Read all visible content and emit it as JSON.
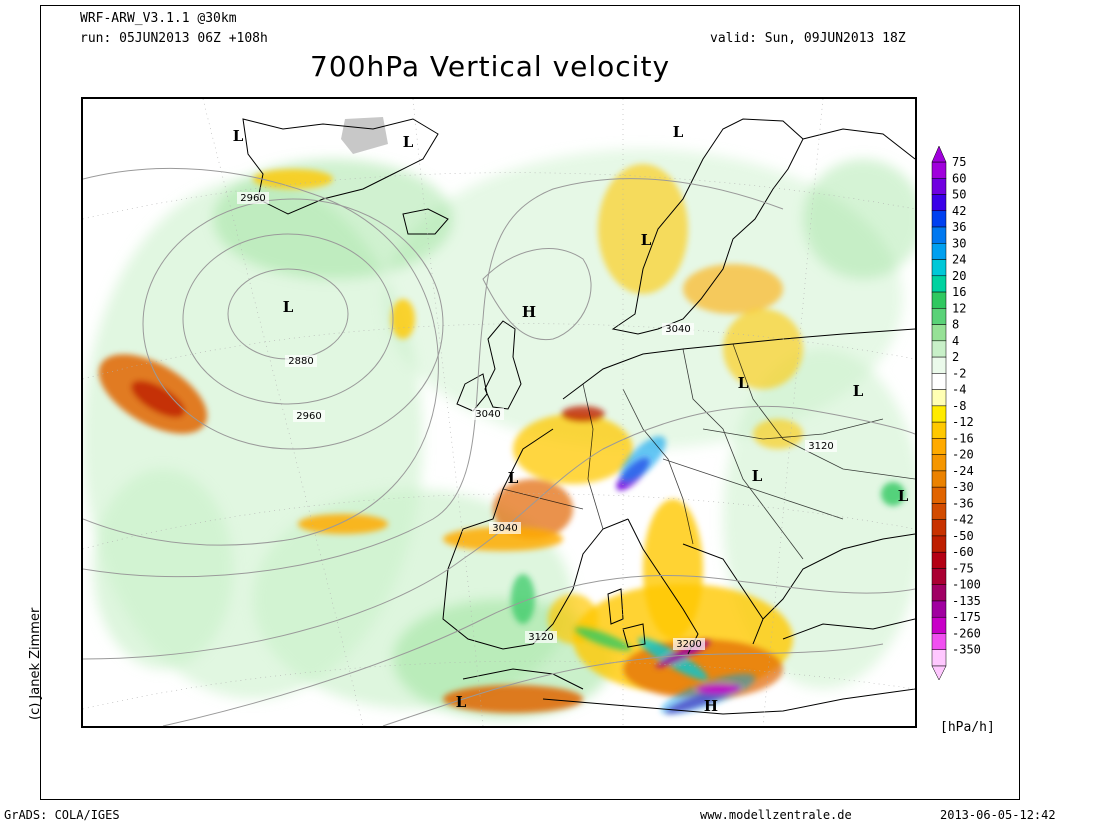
{
  "header": {
    "model": "WRF-ARW_V3.1.1 @30km",
    "run": "run: 05JUN2013 06Z +108h",
    "valid": "valid: Sun, 09JUN2013 18Z",
    "title": "700hPa Vertical velocity"
  },
  "credit": "(c) Janek Zimmer",
  "legend": {
    "unit": "[hPa/h]",
    "levels": [
      {
        "label": "75",
        "color": "#a000dc"
      },
      {
        "label": "60",
        "color": "#7000e0"
      },
      {
        "label": "50",
        "color": "#3a00e8"
      },
      {
        "label": "42",
        "color": "#0040f0"
      },
      {
        "label": "36",
        "color": "#0078f0"
      },
      {
        "label": "30",
        "color": "#00a0f0"
      },
      {
        "label": "24",
        "color": "#00c8d8"
      },
      {
        "label": "20",
        "color": "#00d2a0"
      },
      {
        "label": "16",
        "color": "#30c860"
      },
      {
        "label": "12",
        "color": "#5ad278"
      },
      {
        "label": "8",
        "color": "#96e196"
      },
      {
        "label": "4",
        "color": "#c8f0c8"
      },
      {
        "label": "2",
        "color": "#ebfaeb"
      },
      {
        "label": "-2",
        "color": "#ffffff"
      },
      {
        "label": "-4",
        "color": "#ffffb4"
      },
      {
        "label": "-8",
        "color": "#ffeb00"
      },
      {
        "label": "-12",
        "color": "#ffc800"
      },
      {
        "label": "-16",
        "color": "#ffaa00"
      },
      {
        "label": "-20",
        "color": "#f59600"
      },
      {
        "label": "-24",
        "color": "#eb8200"
      },
      {
        "label": "-30",
        "color": "#e16400"
      },
      {
        "label": "-36",
        "color": "#d24b00"
      },
      {
        "label": "-42",
        "color": "#c83200"
      },
      {
        "label": "-50",
        "color": "#be1e00"
      },
      {
        "label": "-60",
        "color": "#b40014"
      },
      {
        "label": "-75",
        "color": "#aa0032"
      },
      {
        "label": "-100",
        "color": "#a00064"
      },
      {
        "label": "-135",
        "color": "#a000a0"
      },
      {
        "label": "-175",
        "color": "#c800c8"
      },
      {
        "label": "-260",
        "color": "#f050f0"
      },
      {
        "label": "-350",
        "color": "#ffc8ff"
      }
    ]
  },
  "pressure_centers": [
    {
      "type": "L"
    },
    {
      "type": "L"
    },
    {
      "type": "L"
    },
    {
      "type": "H"
    },
    {
      "type": "L"
    },
    {
      "type": "L"
    },
    {
      "type": "L"
    },
    {
      "type": "L"
    },
    {
      "type": "L"
    },
    {
      "type": "L"
    },
    {
      "type": "L"
    },
    {
      "type": "L"
    },
    {
      "type": "H"
    }
  ],
  "contour_labels": [
    "2960",
    "2880",
    "2960",
    "3040",
    "3040",
    "3040",
    "3120",
    "3120",
    "3200"
  ],
  "footer": {
    "left": "GrADS: COLA/IGES",
    "center": "www.modellzentrale.de",
    "right": "2013-06-05-12:42"
  }
}
